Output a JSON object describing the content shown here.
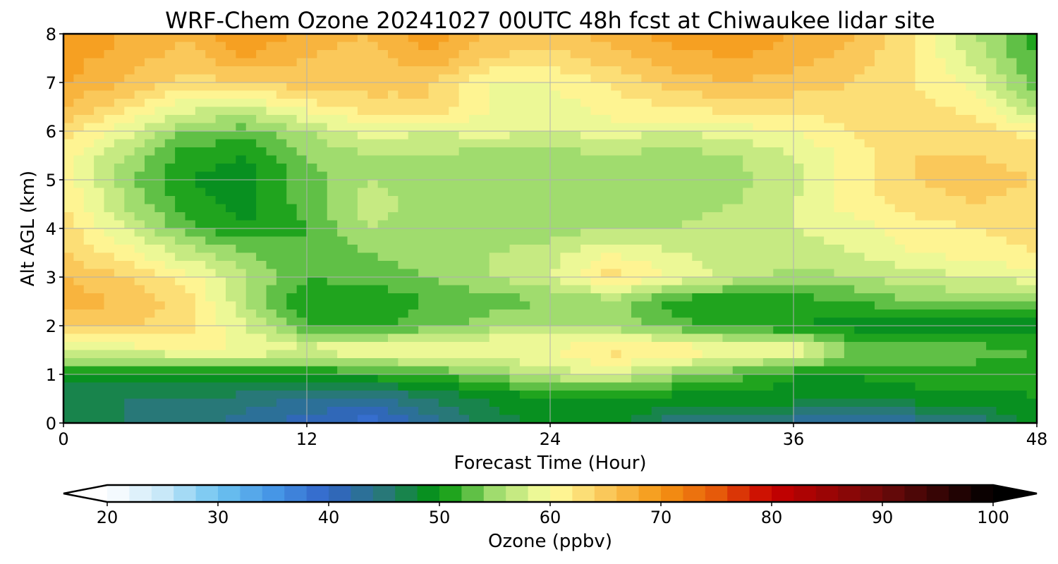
{
  "chart_data": {
    "type": "heatmap",
    "title": "WRF-Chem Ozone  20241027 00UTC 48h fcst at Chiwaukee lidar site",
    "xlabel": "Forecast Time (Hour)",
    "ylabel": "Alt AGL (km)",
    "xlim": [
      0,
      48
    ],
    "ylim": [
      0,
      8
    ],
    "xticks": [
      0,
      12,
      24,
      36,
      48
    ],
    "yticks": [
      0,
      1,
      2,
      3,
      4,
      5,
      6,
      7,
      8
    ],
    "grid": true,
    "x": [
      0,
      3,
      6,
      9,
      12,
      15,
      18,
      21,
      24,
      27,
      30,
      33,
      36,
      39,
      42,
      45,
      48
    ],
    "y": [
      0,
      0.5,
      1,
      1.5,
      2,
      2.5,
      3,
      3.5,
      4,
      4.5,
      5,
      5.5,
      6,
      6.5,
      7,
      7.5,
      8
    ],
    "z": [
      [
        46,
        46,
        45,
        43,
        41,
        39,
        43,
        47,
        49,
        49,
        45,
        44,
        43,
        42,
        43,
        45,
        49
      ],
      [
        46,
        46,
        46,
        45,
        44,
        43,
        46,
        48,
        50,
        50,
        49,
        49,
        49,
        49,
        49,
        49,
        50
      ],
      [
        49,
        49,
        50,
        50,
        50,
        51,
        52,
        54,
        57,
        58,
        55,
        53,
        50,
        50,
        51,
        51,
        51
      ],
      [
        59,
        59,
        60,
        60,
        59,
        60,
        61,
        61,
        60,
        63,
        62,
        60,
        61,
        54,
        53,
        53,
        52
      ],
      [
        65,
        64,
        63,
        58,
        52,
        51,
        53,
        55,
        56,
        55,
        53,
        51,
        50,
        49,
        48,
        48,
        48
      ],
      [
        67,
        66,
        63,
        56,
        50,
        50,
        52,
        53,
        54,
        55,
        51,
        50,
        51,
        52,
        54,
        55,
        55
      ],
      [
        66,
        64,
        61,
        56,
        52,
        53,
        54,
        56,
        58,
        63,
        60,
        57,
        55,
        56,
        57,
        58,
        59
      ],
      [
        64,
        61,
        57,
        54,
        52,
        54,
        55,
        56,
        57,
        60,
        58,
        57,
        57,
        58,
        60,
        61,
        62
      ],
      [
        63,
        58,
        53,
        50,
        52,
        56,
        55,
        54,
        55,
        56,
        56,
        57,
        58,
        59,
        61,
        62,
        63
      ],
      [
        62,
        56,
        51,
        49,
        53,
        57,
        55,
        54,
        54,
        54,
        55,
        56,
        58,
        61,
        63,
        64,
        63
      ],
      [
        61,
        55,
        50,
        49,
        53,
        56,
        55,
        54,
        54,
        54,
        54,
        55,
        57,
        61,
        64,
        65,
        64
      ],
      [
        61,
        56,
        51,
        50,
        54,
        56,
        56,
        55,
        55,
        56,
        55,
        56,
        58,
        61,
        64,
        64,
        63
      ],
      [
        63,
        59,
        54,
        53,
        56,
        59,
        58,
        59,
        58,
        59,
        58,
        59,
        60,
        62,
        64,
        63,
        61
      ],
      [
        66,
        63,
        59,
        58,
        61,
        63,
        64,
        60,
        59,
        61,
        62,
        63,
        63,
        63,
        63,
        61,
        56
      ],
      [
        68,
        66,
        63,
        64,
        65,
        65,
        64,
        60,
        60,
        62,
        65,
        66,
        65,
        64,
        62,
        59,
        53
      ],
      [
        69,
        67,
        65,
        68,
        66,
        65,
        68,
        64,
        63,
        65,
        67,
        68,
        67,
        65,
        62,
        57,
        52
      ],
      [
        70,
        68,
        66,
        70,
        67,
        66,
        69,
        66,
        65,
        67,
        69,
        70,
        68,
        66,
        62,
        56,
        51
      ]
    ],
    "colorbar": {
      "label": "Ozone  (ppbv)",
      "min": 20,
      "max": 100,
      "ticks": [
        20,
        30,
        40,
        50,
        60,
        70,
        80,
        90,
        100
      ],
      "extend": "both",
      "orientation": "horizontal",
      "placement": "bottom"
    }
  }
}
